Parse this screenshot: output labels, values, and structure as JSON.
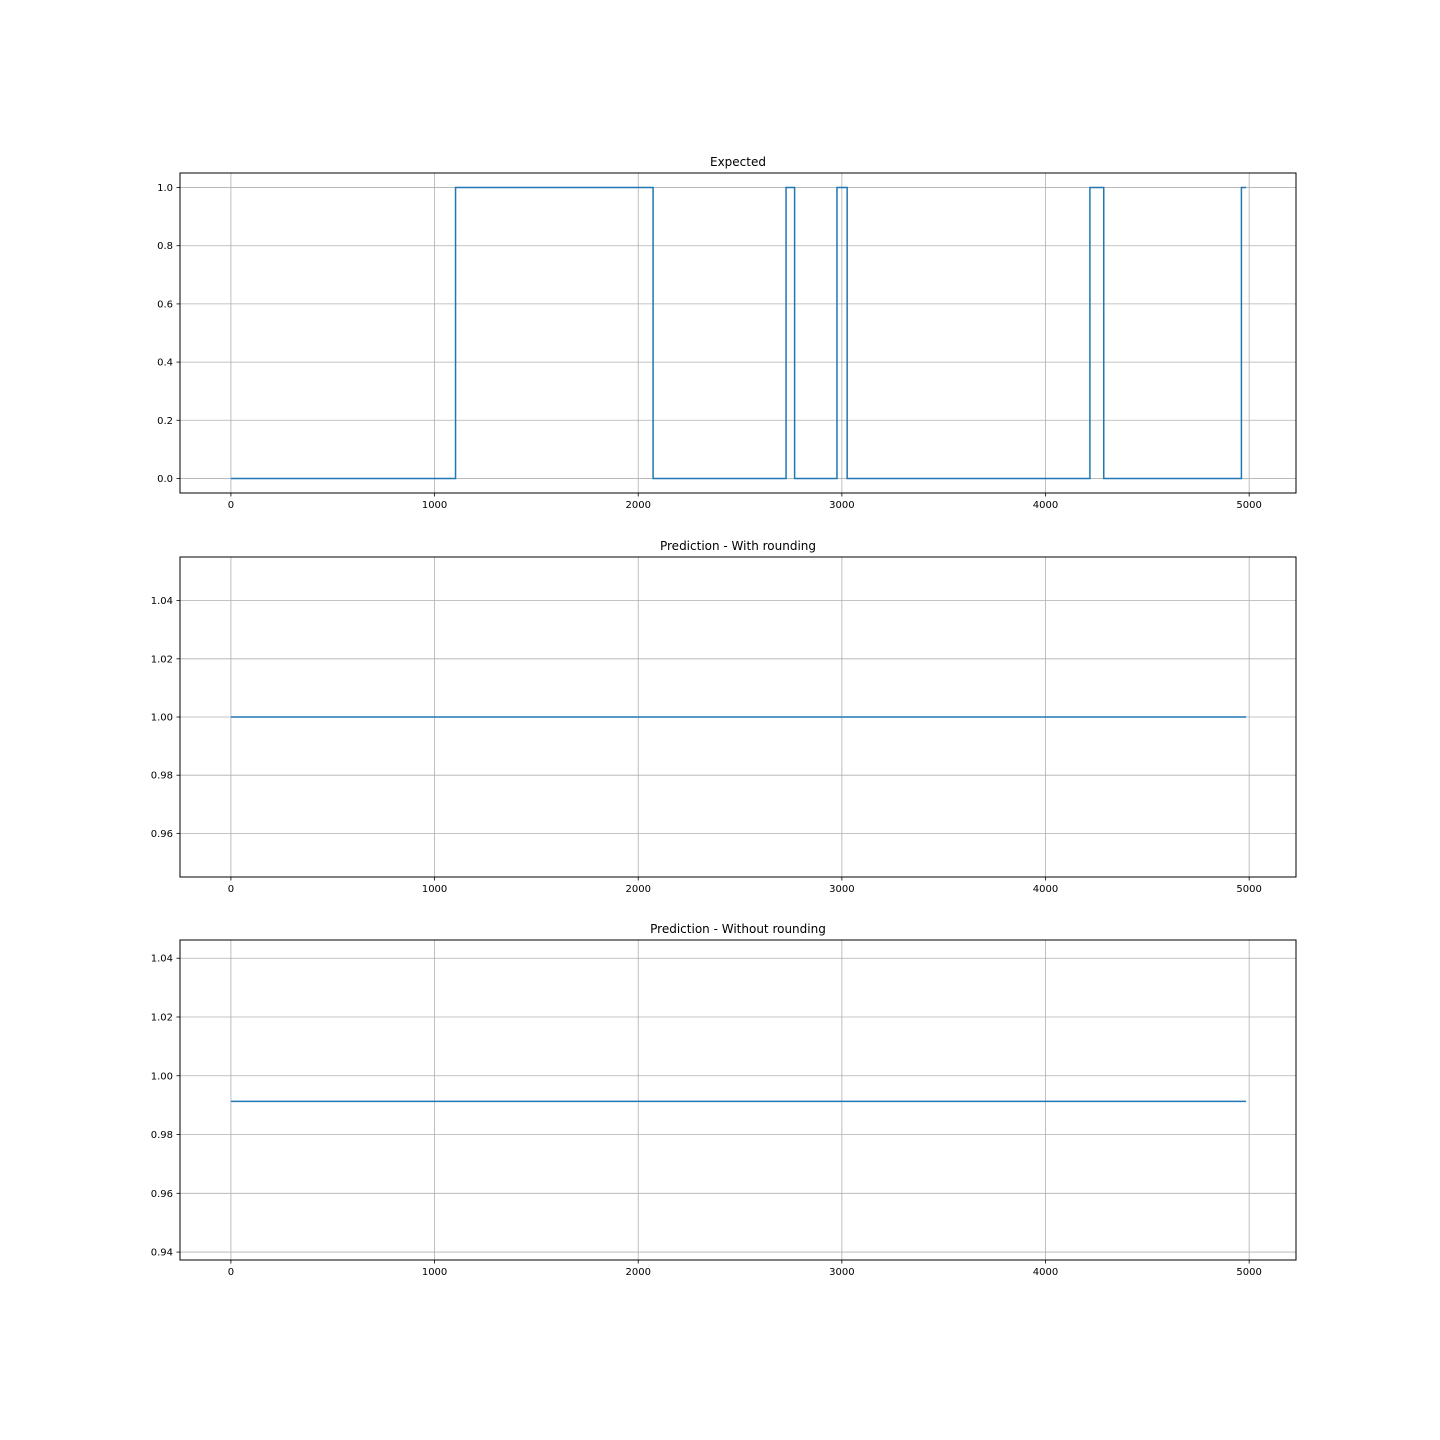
{
  "chart_data": [
    {
      "type": "line",
      "title": "Expected",
      "xlabel": "",
      "ylabel": "",
      "xlim": [
        -250,
        5230
      ],
      "ylim": [
        -0.05,
        1.05
      ],
      "xticks": [
        0,
        1000,
        2000,
        3000,
        4000,
        5000
      ],
      "xtick_labels": [
        "0",
        "1000",
        "2000",
        "3000",
        "4000",
        "5000"
      ],
      "yticks": [
        0.0,
        0.2,
        0.4,
        0.6,
        0.8,
        1.0
      ],
      "ytick_labels": [
        "0.0",
        "0.2",
        "0.4",
        "0.6",
        "0.8",
        "1.0"
      ],
      "grid": true,
      "color": "#1f77b4",
      "series": [
        {
          "x": [
            0,
            1103,
            1103,
            2073,
            2073,
            2726,
            2726,
            2768,
            2768,
            2976,
            2976,
            3026,
            3026,
            4218,
            4218,
            4286,
            4286,
            4962,
            4962,
            4985
          ],
          "y": [
            0,
            0,
            1,
            1,
            0,
            0,
            1,
            1,
            0,
            0,
            1,
            1,
            0,
            0,
            1,
            1,
            0,
            0,
            1,
            1
          ]
        }
      ]
    },
    {
      "type": "line",
      "title": "Prediction - With rounding",
      "xlabel": "",
      "ylabel": "",
      "xlim": [
        -250,
        5230
      ],
      "ylim": [
        0.945,
        1.055
      ],
      "xticks": [
        0,
        1000,
        2000,
        3000,
        4000,
        5000
      ],
      "xtick_labels": [
        "0",
        "1000",
        "2000",
        "3000",
        "4000",
        "5000"
      ],
      "yticks": [
        0.96,
        0.98,
        1.0,
        1.02,
        1.04
      ],
      "ytick_labels": [
        "0.96",
        "0.98",
        "1.00",
        "1.02",
        "1.04"
      ],
      "grid": true,
      "color": "#1f77b4",
      "series": [
        {
          "x": [
            0,
            4985
          ],
          "y": [
            1.0,
            1.0
          ]
        }
      ]
    },
    {
      "type": "line",
      "title": "Prediction - Without rounding",
      "xlabel": "",
      "ylabel": "",
      "xlim": [
        -250,
        5230
      ],
      "ylim": [
        0.9373,
        1.0462
      ],
      "xticks": [
        0,
        1000,
        2000,
        3000,
        4000,
        5000
      ],
      "xtick_labels": [
        "0",
        "1000",
        "2000",
        "3000",
        "4000",
        "5000"
      ],
      "yticks": [
        0.94,
        0.96,
        0.98,
        1.0,
        1.02,
        1.04
      ],
      "ytick_labels": [
        "0.94",
        "0.96",
        "0.98",
        "1.00",
        "1.02",
        "1.04"
      ],
      "grid": true,
      "color": "#1f77b4",
      "series": [
        {
          "x": [
            0,
            4985
          ],
          "y": [
            0.9913,
            0.9913
          ]
        }
      ]
    }
  ]
}
